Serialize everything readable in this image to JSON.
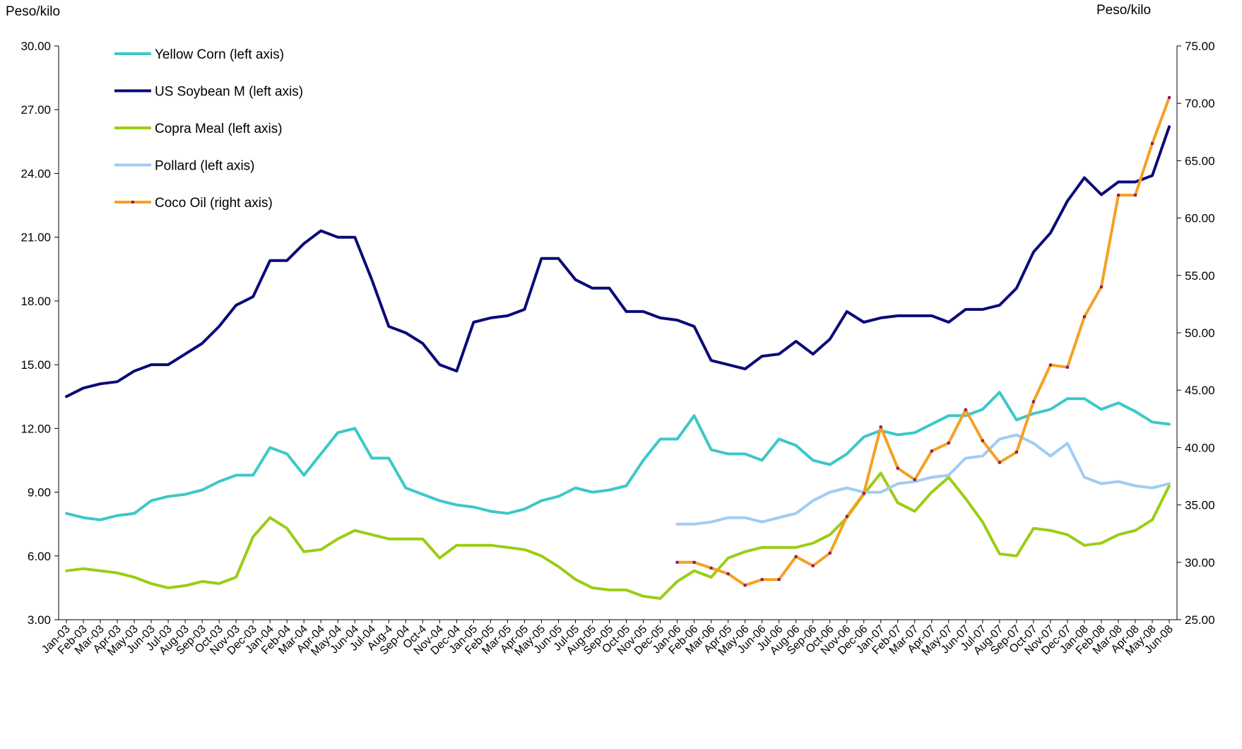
{
  "chart_data": {
    "type": "line",
    "left_axis": {
      "unit_label": "Peso/kilo",
      "min": 3,
      "max": 30,
      "ticks": [
        "3.00",
        "6.00",
        "9.00",
        "12.00",
        "15.00",
        "18.00",
        "21.00",
        "24.00",
        "27.00",
        "30.00"
      ]
    },
    "right_axis": {
      "unit_label": "Peso/kilo",
      "min": 25,
      "max": 75,
      "ticks": [
        "25.00",
        "30.00",
        "35.00",
        "40.00",
        "45.00",
        "50.00",
        "55.00",
        "60.00",
        "65.00",
        "70.00",
        "75.00"
      ]
    },
    "categories": [
      "Jan-03",
      "Feb-03",
      "Mar-03",
      "Apr-03",
      "May-03",
      "Jun-03",
      "Jul-03",
      "Aug-03",
      "Sep-03",
      "Oct-03",
      "Nov-03",
      "Dec-03",
      "Jan-04",
      "Feb-04",
      "Mar-04",
      "Apr-04",
      "May-04",
      "Jun-04",
      "Jul-04",
      "Aug-4",
      "Sep-04",
      "Oct-4",
      "Nov-04",
      "Dec-04",
      "Jan-05",
      "Feb-05",
      "Mar-05",
      "Apr-05",
      "May-05",
      "Jun-05",
      "Jul-05",
      "Aug-05",
      "Sep-05",
      "Oct-05",
      "Nov-05",
      "Dec-05",
      "Jan-06",
      "Feb-06",
      "Mar-06",
      "Apr-05",
      "May-06",
      "Jun-06",
      "Jul-06",
      "Aug-06",
      "Sep-06",
      "Oct-06",
      "Nov-06",
      "Dec-06",
      "Jan-07",
      "Feb-07",
      "Mar-07",
      "Apr-07",
      "May-07",
      "Jun-07",
      "Jul-07",
      "Aug-07",
      "Sep-07",
      "Oct-07",
      "Nov-07",
      "Dec-07",
      "Jan-08",
      "Feb-08",
      "Mar-08",
      "Apr-08",
      "May-08",
      "Jun-08"
    ],
    "legend_position": "top-left",
    "grid": false,
    "series": [
      {
        "name": "Yellow Corn (left axis)",
        "axis": "left",
        "color": "#3cc8c8",
        "markers": false,
        "values": [
          8.0,
          7.8,
          7.7,
          7.9,
          8.0,
          8.6,
          8.8,
          8.9,
          9.1,
          9.5,
          9.8,
          9.8,
          11.1,
          10.8,
          9.8,
          10.8,
          11.8,
          12.0,
          10.6,
          10.6,
          9.2,
          8.9,
          8.6,
          8.4,
          8.3,
          8.1,
          8.0,
          8.2,
          8.6,
          8.8,
          9.2,
          9.0,
          9.1,
          9.3,
          10.5,
          11.5,
          11.5,
          12.6,
          11.0,
          10.8,
          10.8,
          10.5,
          11.5,
          11.2,
          10.5,
          10.3,
          10.8,
          11.6,
          11.9,
          11.7,
          11.8,
          12.2,
          12.6,
          12.6,
          12.9,
          13.7,
          12.4,
          12.7,
          12.9,
          13.4,
          13.4,
          12.9,
          13.2,
          12.8,
          12.3,
          12.2
        ]
      },
      {
        "name": "US Soybean M (left axis)",
        "axis": "left",
        "color": "#0a0a78",
        "markers": false,
        "values": [
          13.5,
          13.9,
          14.1,
          14.2,
          14.7,
          15.0,
          15.0,
          15.5,
          16.0,
          16.8,
          17.8,
          18.2,
          19.9,
          19.9,
          20.7,
          21.3,
          21.0,
          21.0,
          19.0,
          16.8,
          16.5,
          16.0,
          15.0,
          14.7,
          17.0,
          17.2,
          17.3,
          17.6,
          20.0,
          20.0,
          19.0,
          18.6,
          18.6,
          17.5,
          17.5,
          17.2,
          17.1,
          16.8,
          15.2,
          15.0,
          14.8,
          15.4,
          15.5,
          16.1,
          15.5,
          16.2,
          17.5,
          17.0,
          17.2,
          17.3,
          17.3,
          17.3,
          17.0,
          17.6,
          17.6,
          17.8,
          18.6,
          20.3,
          21.2,
          22.7,
          23.8,
          23.0,
          23.6,
          23.6,
          23.9,
          26.2
        ]
      },
      {
        "name": "Copra Meal (left axis)",
        "axis": "left",
        "color": "#9acd14",
        "markers": false,
        "values": [
          5.3,
          5.4,
          5.3,
          5.2,
          5.0,
          4.7,
          4.5,
          4.6,
          4.8,
          4.7,
          5.0,
          6.9,
          7.8,
          7.3,
          6.2,
          6.3,
          6.8,
          7.2,
          7.0,
          6.8,
          6.8,
          6.8,
          5.9,
          6.5,
          6.5,
          6.5,
          6.4,
          6.3,
          6.0,
          5.5,
          4.9,
          4.5,
          4.4,
          4.4,
          4.1,
          4.0,
          4.8,
          5.3,
          5.0,
          5.9,
          6.2,
          6.4,
          6.4,
          6.4,
          6.6,
          7.0,
          7.8,
          8.9,
          9.9,
          8.5,
          8.1,
          9.0,
          9.7,
          8.7,
          7.6,
          6.1,
          6.0,
          7.3,
          7.2,
          7.0,
          6.5,
          6.6,
          7.0,
          7.2,
          7.7,
          9.3
        ]
      },
      {
        "name": "Pollard (left axis)",
        "axis": "left",
        "color": "#a0ccf4",
        "markers": false,
        "values": [
          null,
          null,
          null,
          null,
          null,
          null,
          null,
          null,
          null,
          null,
          null,
          null,
          null,
          null,
          null,
          null,
          null,
          null,
          null,
          null,
          null,
          null,
          null,
          null,
          null,
          null,
          null,
          null,
          null,
          null,
          null,
          null,
          null,
          null,
          null,
          null,
          7.5,
          7.5,
          7.6,
          7.8,
          7.8,
          7.6,
          7.8,
          8.0,
          8.6,
          9.0,
          9.2,
          9.0,
          9.0,
          9.4,
          9.5,
          9.7,
          9.8,
          10.6,
          10.7,
          11.5,
          11.7,
          11.3,
          10.7,
          11.3,
          9.7,
          9.4,
          9.5,
          9.3,
          9.2,
          9.4
        ]
      },
      {
        "name": "Coco Oil (right axis)",
        "axis": "right",
        "color": "#f5a023",
        "marker_color": "#8a1a6a",
        "markers": true,
        "values": [
          null,
          null,
          null,
          null,
          null,
          null,
          null,
          null,
          null,
          null,
          null,
          null,
          null,
          null,
          null,
          null,
          null,
          null,
          null,
          null,
          null,
          null,
          null,
          null,
          null,
          null,
          null,
          null,
          null,
          null,
          null,
          null,
          null,
          null,
          null,
          null,
          30.0,
          30.0,
          29.5,
          29.0,
          28.0,
          28.5,
          28.5,
          30.5,
          29.7,
          30.8,
          34.0,
          36.0,
          41.8,
          38.2,
          37.2,
          39.7,
          40.4,
          43.3,
          40.6,
          38.7,
          39.6,
          44.0,
          47.2,
          47.0,
          51.4,
          54.0,
          62.0,
          62.0,
          66.5,
          70.5
        ]
      }
    ]
  }
}
